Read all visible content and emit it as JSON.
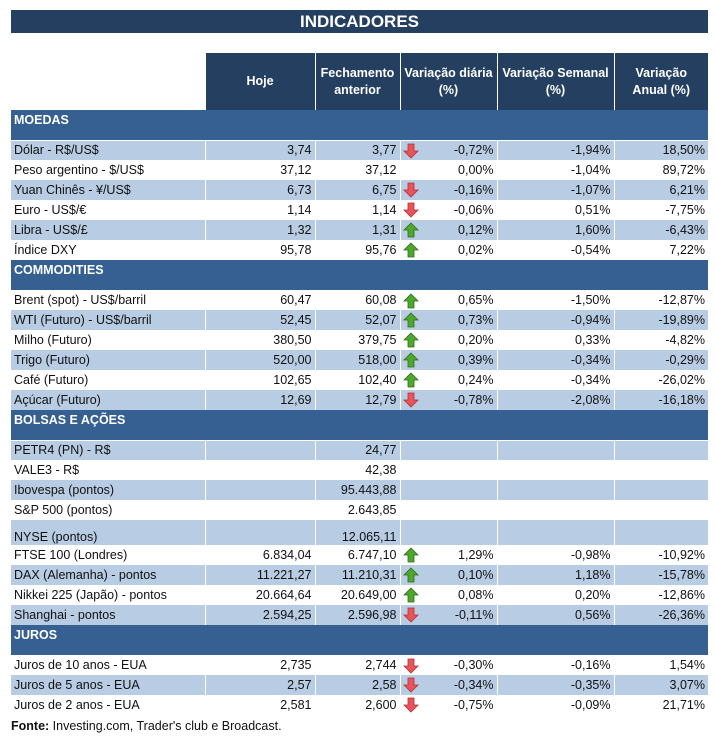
{
  "title": "INDICADORES",
  "columns": [
    "Hoje",
    "Fechamento anterior",
    "Variação diária (%)",
    "Variação Semanal (%)",
    "Variação Anual (%)"
  ],
  "colors": {
    "header": "#243f60",
    "section": "#366092",
    "stripe": "#b8cce4",
    "up": "#4ea72e",
    "down": "#e8545a"
  },
  "sections": [
    {
      "name": "MOEDAS",
      "rows": [
        {
          "label": "Dólar - R$/US$",
          "hoje": "3,74",
          "anterior": "3,77",
          "arrow": "down",
          "diaria": "-0,72%",
          "semanal": "-1,94%",
          "anual": "18,50%"
        },
        {
          "label": "Peso argentino - $/US$",
          "hoje": "37,12",
          "anterior": "37,12",
          "arrow": null,
          "diaria": "0,00%",
          "semanal": "-1,04%",
          "anual": "89,72%"
        },
        {
          "label": "Yuan Chinês - ¥/US$",
          "hoje": "6,73",
          "anterior": "6,75",
          "arrow": "down",
          "diaria": "-0,16%",
          "semanal": "-1,07%",
          "anual": "6,21%"
        },
        {
          "label": "Euro - US$/€",
          "hoje": "1,14",
          "anterior": "1,14",
          "arrow": "down",
          "diaria": "-0,06%",
          "semanal": "0,51%",
          "anual": "-7,75%"
        },
        {
          "label": "Libra - US$/£",
          "hoje": "1,32",
          "anterior": "1,31",
          "arrow": "up",
          "diaria": "0,12%",
          "semanal": "1,60%",
          "anual": "-6,43%"
        },
        {
          "label": "Índice DXY",
          "hoje": "95,78",
          "anterior": "95,76",
          "arrow": "up",
          "diaria": "0,02%",
          "semanal": "-0,54%",
          "anual": "7,22%"
        }
      ]
    },
    {
      "name": "COMMODITIES",
      "rows": [
        {
          "label": "Brent (spot) - US$/barril",
          "hoje": "60,47",
          "anterior": "60,08",
          "arrow": "up",
          "diaria": "0,65%",
          "semanal": "-1,50%",
          "anual": "-12,87%"
        },
        {
          "label": "WTI (Futuro) - US$/barril",
          "hoje": "52,45",
          "anterior": "52,07",
          "arrow": "up",
          "diaria": "0,73%",
          "semanal": "-0,94%",
          "anual": "-19,89%"
        },
        {
          "label": "Milho (Futuro)",
          "hoje": "380,50",
          "anterior": "379,75",
          "arrow": "up",
          "diaria": "0,20%",
          "semanal": "0,33%",
          "anual": "-4,82%"
        },
        {
          "label": "Trigo (Futuro)",
          "hoje": "520,00",
          "anterior": "518,00",
          "arrow": "up",
          "diaria": "0,39%",
          "semanal": "-0,34%",
          "anual": "-0,29%"
        },
        {
          "label": "Café (Futuro)",
          "hoje": "102,65",
          "anterior": "102,40",
          "arrow": "up",
          "diaria": "0,24%",
          "semanal": "-0,34%",
          "anual": "-26,02%"
        },
        {
          "label": "Açúcar (Futuro)",
          "hoje": "12,69",
          "anterior": "12,79",
          "arrow": "down",
          "diaria": "-0,78%",
          "semanal": "-2,08%",
          "anual": "-16,18%"
        }
      ]
    },
    {
      "name": "BOLSAS E AÇÕES",
      "rows": [
        {
          "label": "PETR4 (PN) - R$",
          "hoje": "",
          "anterior": "24,77",
          "arrow": null,
          "diaria": "",
          "semanal": "",
          "anual": ""
        },
        {
          "label": "VALE3 - R$",
          "hoje": "",
          "anterior": "42,38",
          "arrow": null,
          "diaria": "",
          "semanal": "",
          "anual": ""
        },
        {
          "label": "Ibovespa (pontos)",
          "hoje": "",
          "anterior": "95.443,88",
          "arrow": null,
          "diaria": "",
          "semanal": "",
          "anual": ""
        },
        {
          "label": "S&P 500 (pontos)",
          "hoje": "",
          "anterior": "2.643,85",
          "arrow": null,
          "diaria": "",
          "semanal": "",
          "anual": ""
        },
        {
          "label": "NYSE (pontos)",
          "hoje": "",
          "anterior": "12.065,11",
          "arrow": null,
          "diaria": "",
          "semanal": "",
          "anual": ""
        },
        {
          "label": "FTSE 100 (Londres)",
          "hoje": "6.834,04",
          "anterior": "6.747,10",
          "arrow": "up",
          "diaria": "1,29%",
          "semanal": "-0,98%",
          "anual": "-10,92%"
        },
        {
          "label": "DAX (Alemanha) - pontos",
          "hoje": "11.221,27",
          "anterior": "11.210,31",
          "arrow": "up",
          "diaria": "0,10%",
          "semanal": "1,18%",
          "anual": "-15,78%"
        },
        {
          "label": "Nikkei 225 (Japão) - pontos",
          "hoje": "20.664,64",
          "anterior": "20.649,00",
          "arrow": "up",
          "diaria": "0,08%",
          "semanal": "0,20%",
          "anual": "-12,86%"
        },
        {
          "label": "Shanghai - pontos",
          "hoje": "2.594,25",
          "anterior": "2.596,98",
          "arrow": "down",
          "diaria": "-0,11%",
          "semanal": "0,56%",
          "anual": "-26,36%"
        }
      ]
    },
    {
      "name": "JUROS",
      "rows": [
        {
          "label": "Juros de 10 anos - EUA",
          "hoje": "2,735",
          "anterior": "2,744",
          "arrow": "down",
          "diaria": "-0,30%",
          "semanal": "-0,16%",
          "anual": "1,54%"
        },
        {
          "label": "Juros de 5 anos - EUA",
          "hoje": "2,57",
          "anterior": "2,58",
          "arrow": "down",
          "diaria": "-0,34%",
          "semanal": "-0,35%",
          "anual": "3,07%"
        },
        {
          "label": "Juros de 2 anos - EUA",
          "hoje": "2,581",
          "anterior": "2,600",
          "arrow": "down",
          "diaria": "-0,75%",
          "semanal": "-0,09%",
          "anual": "21,71%"
        }
      ]
    }
  ],
  "footer": {
    "label": "Fonte:",
    "text": " Investing.com, Trader's club e Broadcast."
  }
}
